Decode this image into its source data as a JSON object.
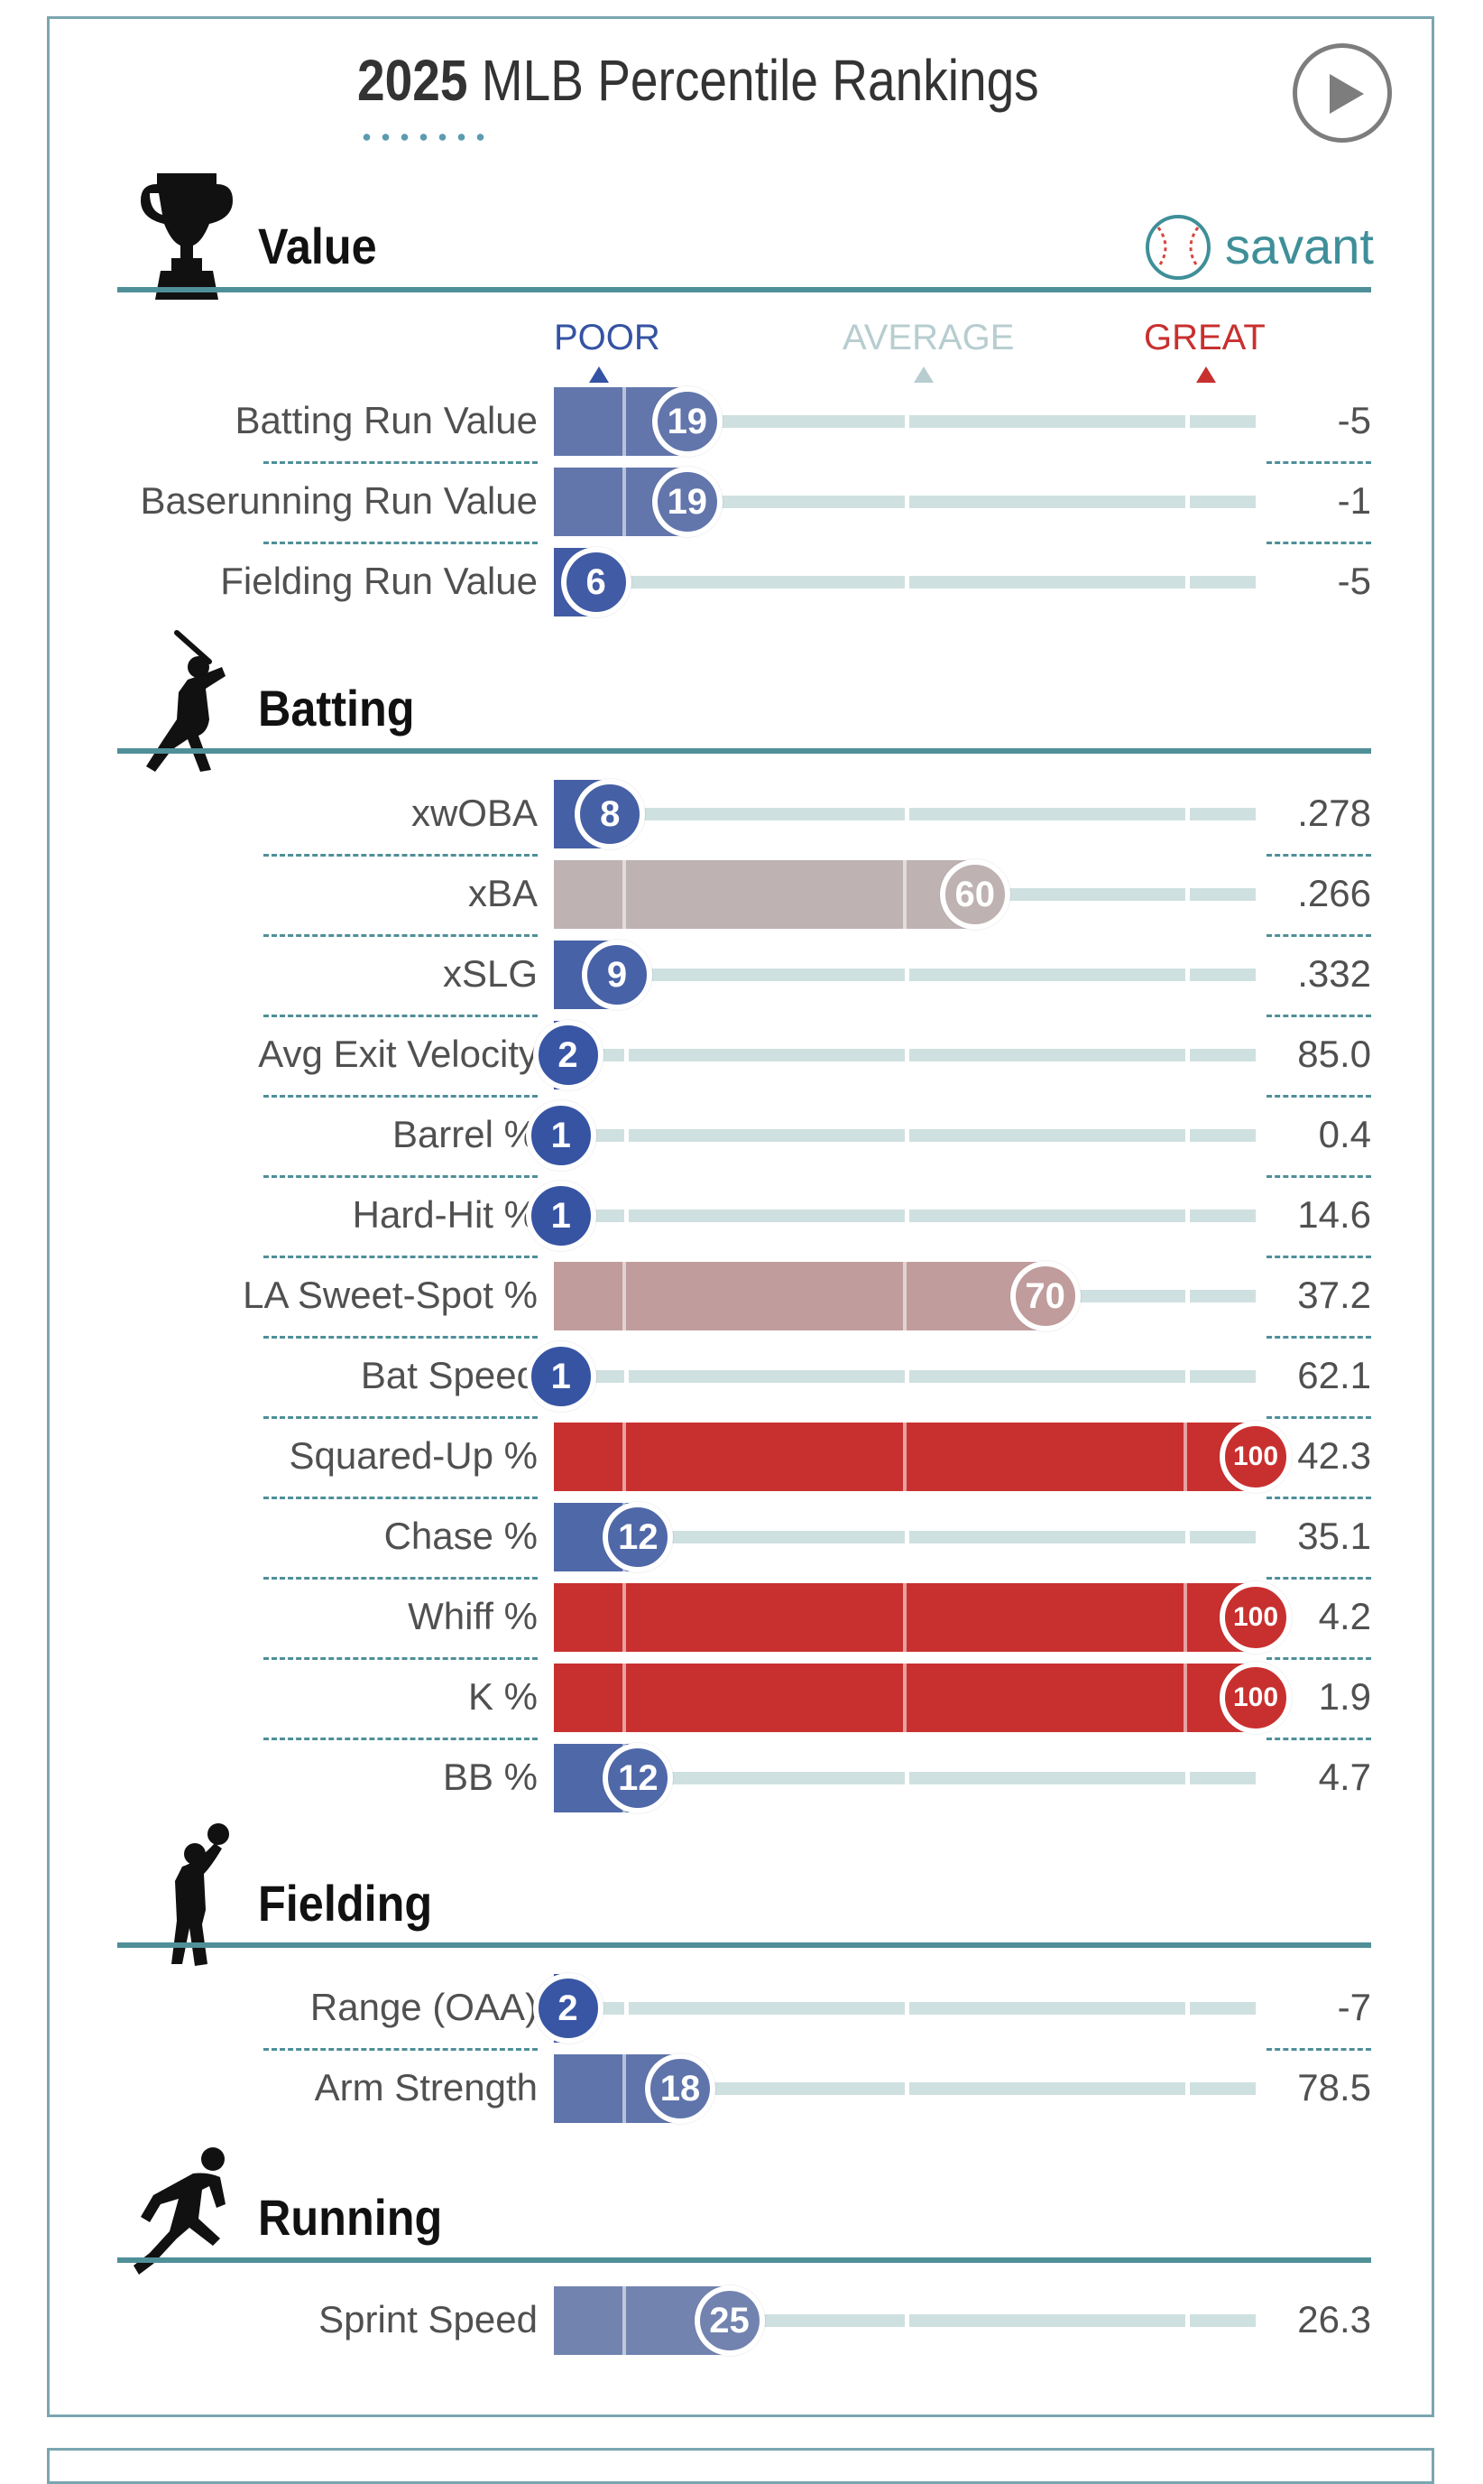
{
  "header": {
    "title_year": "2025",
    "title_rest": "MLB Percentile Rankings"
  },
  "brand": {
    "label": "savant"
  },
  "scale": {
    "poor": "POOR",
    "average": "AVERAGE",
    "great": "GREAT"
  },
  "colors": {
    "poor": "#3553a3",
    "average": "#bdbdbd",
    "great": "#c8302f",
    "accent": "#4f8f98",
    "track": "#cfe0e0"
  },
  "sections": [
    {
      "title": "Value",
      "icon": "trophy-icon",
      "rows": [
        {
          "label": "Batting Run Value",
          "percentile": 19,
          "value": "-5"
        },
        {
          "label": "Baserunning Run Value",
          "percentile": 19,
          "value": "-1"
        },
        {
          "label": "Fielding Run Value",
          "percentile": 6,
          "value": "-5"
        }
      ]
    },
    {
      "title": "Batting",
      "icon": "batter-icon",
      "rows": [
        {
          "label": "xwOBA",
          "percentile": 8,
          "value": ".278"
        },
        {
          "label": "xBA",
          "percentile": 60,
          "value": ".266"
        },
        {
          "label": "xSLG",
          "percentile": 9,
          "value": ".332"
        },
        {
          "label": "Avg Exit Velocity",
          "percentile": 2,
          "value": "85.0"
        },
        {
          "label": "Barrel %",
          "percentile": 1,
          "value": "0.4"
        },
        {
          "label": "Hard-Hit %",
          "percentile": 1,
          "value": "14.6"
        },
        {
          "label": "LA Sweet-Spot %",
          "percentile": 70,
          "value": "37.2"
        },
        {
          "label": "Bat Speed",
          "percentile": 1,
          "value": "62.1"
        },
        {
          "label": "Squared-Up %",
          "percentile": 100,
          "value": "42.3"
        },
        {
          "label": "Chase %",
          "percentile": 12,
          "value": "35.1"
        },
        {
          "label": "Whiff %",
          "percentile": 100,
          "value": "4.2"
        },
        {
          "label": "K %",
          "percentile": 100,
          "value": "1.9"
        },
        {
          "label": "BB %",
          "percentile": 12,
          "value": "4.7"
        }
      ]
    },
    {
      "title": "Fielding",
      "icon": "fielder-icon",
      "rows": [
        {
          "label": "Range (OAA)",
          "percentile": 2,
          "value": "-7"
        },
        {
          "label": "Arm Strength",
          "percentile": 18,
          "value": "78.5"
        }
      ]
    },
    {
      "title": "Running",
      "icon": "runner-icon",
      "rows": [
        {
          "label": "Sprint Speed",
          "percentile": 25,
          "value": "26.3"
        }
      ]
    }
  ]
}
